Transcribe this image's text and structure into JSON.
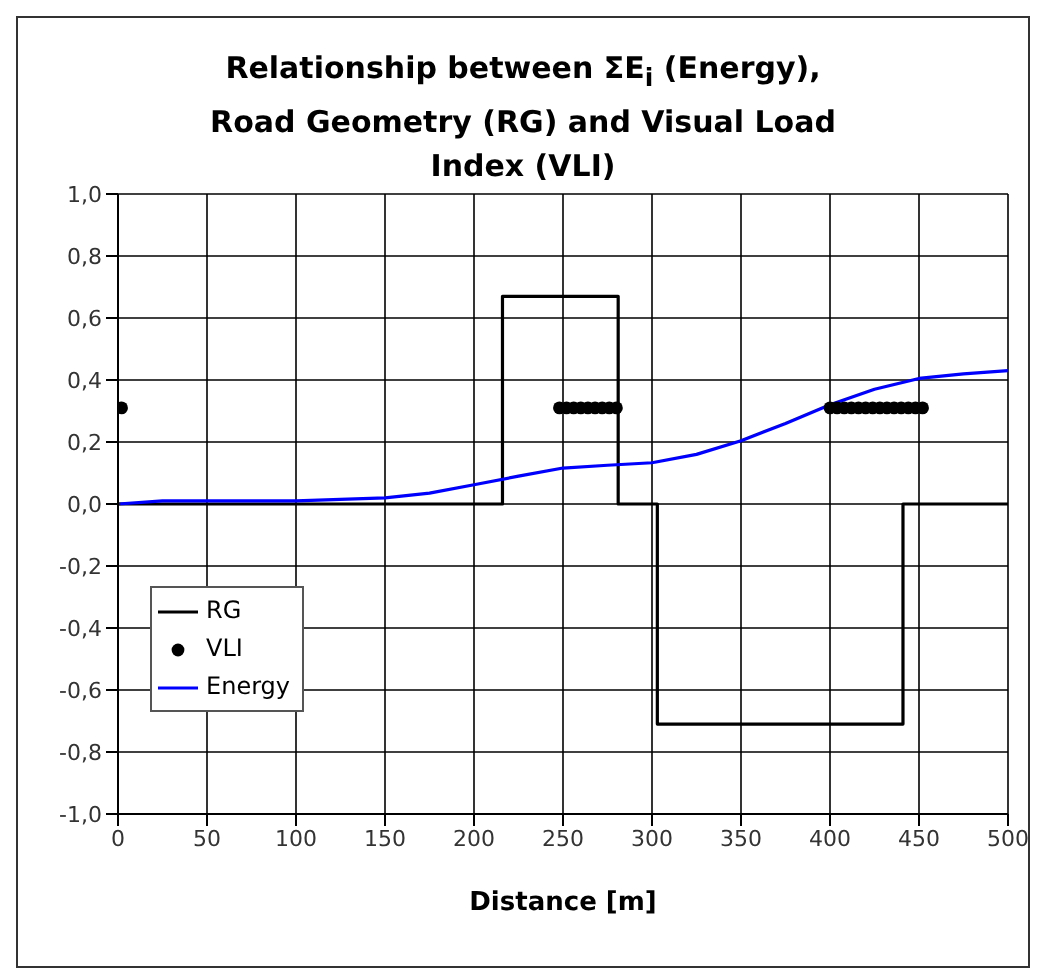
{
  "chart_data": {
    "type": "line",
    "title": "Relationship between ΣE$_{i}$ (Energy), Road Geometry (RG) and Visual Load Index (VLI)",
    "xlabel": "Distance [m]",
    "xlim": [
      0,
      500
    ],
    "xticks": [
      0,
      50,
      100,
      150,
      200,
      250,
      300,
      350,
      400,
      450,
      500
    ],
    "ylim": [
      -1,
      1
    ],
    "yticks": [
      {
        "value": -1,
        "label": "-1,0"
      },
      {
        "value": -0.8,
        "label": "-0,8"
      },
      {
        "value": -0.6,
        "label": "-0,6"
      },
      {
        "value": -0.4,
        "label": "-0,4"
      },
      {
        "value": -0.2,
        "label": "-0,2"
      },
      {
        "value": 0,
        "label": "0,0"
      },
      {
        "value": 0.2,
        "label": "0,2"
      },
      {
        "value": 0.4,
        "label": "0,4"
      },
      {
        "value": 0.6,
        "label": "0,6"
      },
      {
        "value": 0.8,
        "label": "0,8"
      },
      {
        "value": 1,
        "label": "1,0"
      }
    ],
    "grid": true,
    "legend": "left",
    "series": [
      {
        "name": "RG",
        "type": "line",
        "color": "#000000",
        "marker": "none",
        "x": [
          0,
          216,
          216,
          281,
          281,
          303,
          303,
          441,
          441,
          500
        ],
        "values": [
          0,
          0,
          0.67,
          0.67,
          0,
          0,
          -0.71,
          -0.71,
          0,
          0
        ]
      },
      {
        "name": "VLI",
        "type": "scatter",
        "color": "#000000",
        "marker": "circle",
        "x": [
          2,
          248,
          252,
          256,
          260,
          264,
          268,
          272,
          276,
          280,
          400,
          404,
          408,
          412,
          416,
          420,
          424,
          428,
          432,
          436,
          440,
          444,
          448,
          452
        ],
        "values": [
          0.31,
          0.31,
          0.31,
          0.31,
          0.31,
          0.31,
          0.31,
          0.31,
          0.31,
          0.31,
          0.31,
          0.31,
          0.31,
          0.31,
          0.31,
          0.31,
          0.31,
          0.31,
          0.31,
          0.31,
          0.31,
          0.31,
          0.31,
          0.31
        ]
      },
      {
        "name": "Energy",
        "type": "line",
        "color": "#0000ff",
        "marker": "none",
        "x": [
          0,
          25,
          100,
          150,
          175,
          200,
          225,
          250,
          275,
          300,
          325,
          350,
          375,
          400,
          425,
          450,
          475,
          500
        ],
        "values": [
          0,
          0.01,
          0.01,
          0.02,
          0.035,
          0.062,
          0.09,
          0.116,
          0.125,
          0.133,
          0.16,
          0.204,
          0.26,
          0.32,
          0.37,
          0.405,
          0.42,
          0.43
        ]
      }
    ]
  }
}
